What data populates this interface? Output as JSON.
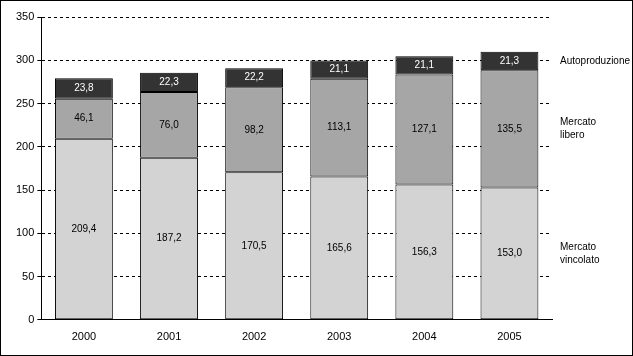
{
  "chart_data": {
    "type": "bar",
    "categories": [
      "2000",
      "2001",
      "2002",
      "2003",
      "2004",
      "2005"
    ],
    "series": [
      {
        "name": "Mercato vincolato",
        "color": "#d3d3d3",
        "values": [
          209.4,
          187.2,
          170.5,
          165.6,
          156.3,
          153.0
        ],
        "value_labels": [
          "209,4",
          "187,2",
          "170,5",
          "165,6",
          "156,3",
          "153,0"
        ]
      },
      {
        "name": "Mercato libero",
        "color": "#a6a6a6",
        "values": [
          46.1,
          76.0,
          98.2,
          113.1,
          127.1,
          135.5
        ],
        "value_labels": [
          "46,1",
          "76,0",
          "98,2",
          "113,1",
          "127,1",
          "135,5"
        ]
      },
      {
        "name": "Autoproduzione",
        "color": "#333333",
        "values": [
          23.8,
          22.3,
          22.2,
          21.1,
          21.1,
          21.3
        ],
        "value_labels": [
          "23,8",
          "22,3",
          "22,2",
          "21,1",
          "21,1",
          "21,3"
        ]
      }
    ],
    "ylim": [
      0,
      350
    ],
    "yticks": [
      0,
      50,
      100,
      150,
      200,
      250,
      300,
      350
    ],
    "grid": true,
    "stacked": true,
    "data_labels": true,
    "legend": "right"
  }
}
